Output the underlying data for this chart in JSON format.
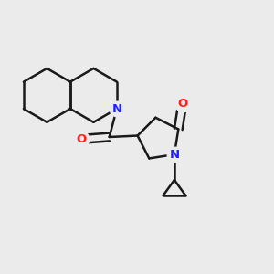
{
  "bg_color": "#ebebeb",
  "bond_color": "#1a1a1a",
  "N_color": "#2020ff",
  "O_color": "#ff2020",
  "bond_width": 1.8,
  "fig_size": [
    3.0,
    3.0
  ],
  "dpi": 100,
  "xlim": [
    0,
    10
  ],
  "ylim": [
    0,
    10
  ],
  "BL": 1.0
}
